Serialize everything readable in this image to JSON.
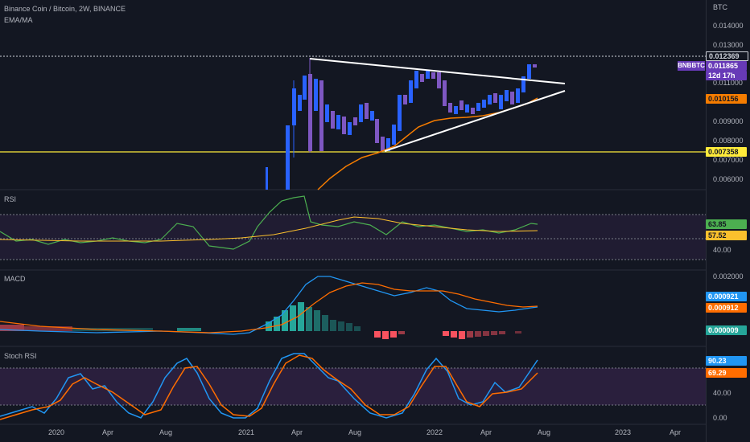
{
  "header": {
    "title": "Binance Coin / Bitcoin, 2W, BINANCE",
    "indicator": "EMA/MA",
    "currency": "BTC",
    "symbol": "BNBBTC"
  },
  "price_axis": {
    "ticks": [
      "0.014000",
      "0.013000",
      "0.011000",
      "0.009000",
      "0.008000",
      "0.007000",
      "0.006000"
    ],
    "last_price": "0.011865",
    "countdown": "12d 17h",
    "high_line": "0.012369",
    "ema_value": "0.010156",
    "support_value": "0.007358"
  },
  "rsi": {
    "title": "RSI",
    "value": "63.85",
    "ma_value": "57.52",
    "tick": "40.00"
  },
  "macd": {
    "title": "MACD",
    "tick_top": "0.002000",
    "macd_value": "0.000921",
    "signal_value": "0.000912",
    "hist_value": "0.000009"
  },
  "stoch": {
    "title": "Stoch RSI",
    "k_value": "90.23",
    "d_value": "69.29",
    "tick_mid": "40.00",
    "tick_low": "0.00"
  },
  "time_axis": [
    "2020",
    "Apr",
    "Aug",
    "2021",
    "Apr",
    "Aug",
    "2022",
    "Apr",
    "Aug",
    "2023",
    "Apr"
  ],
  "colors": {
    "up": "#2962ff",
    "down": "#7e57c2",
    "ema": "#f57c00",
    "support": "#ffeb3b",
    "rsi": "#4caf50",
    "macd": "#2196f3",
    "signal": "#ff6d00",
    "stoch_k": "#2196f3",
    "stoch_d": "#ff6d00"
  }
}
